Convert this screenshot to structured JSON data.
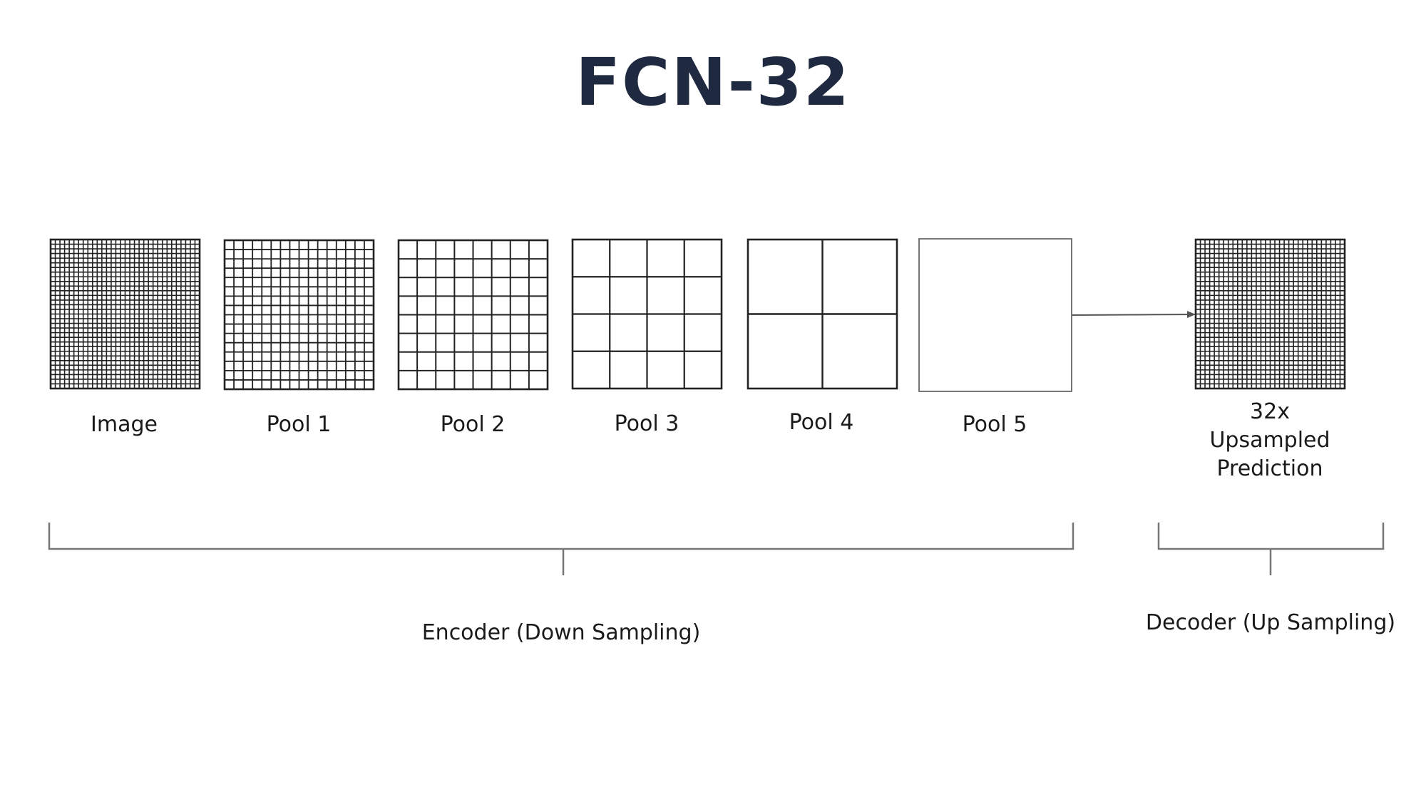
{
  "title": "FCN-32",
  "grids": [
    {
      "label": "Image",
      "divisions": 32
    },
    {
      "label": "Pool 1",
      "divisions": 16
    },
    {
      "label": "Pool 2",
      "divisions": 8
    },
    {
      "label": "Pool 3",
      "divisions": 4
    },
    {
      "label": "Pool 4",
      "divisions": 2
    },
    {
      "label": "Pool 5",
      "divisions": 1
    }
  ],
  "output": {
    "label_lines": [
      "32x",
      "Upsampled",
      "Prediction"
    ],
    "divisions": 32
  },
  "encoder_label": "Encoder (Down Sampling)",
  "decoder_label": "Decoder (Up Sampling)"
}
